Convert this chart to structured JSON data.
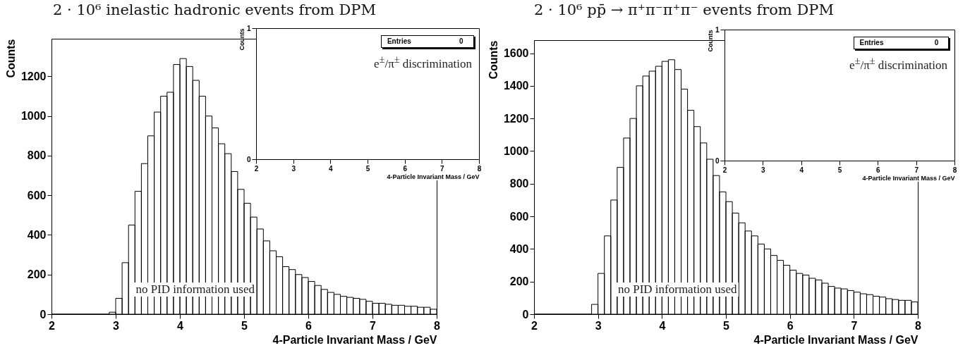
{
  "chart_data": [
    {
      "type": "histogram",
      "title": "2 · 10⁶ inelastic hadronic events from DPM",
      "xlabel": "4-Particle Invariant Mass / GeV",
      "ylabel": "Counts",
      "color": "#000000",
      "bins": [
        2,
        2.1,
        2.2,
        2.3,
        2.4,
        2.5,
        2.6,
        2.7,
        2.8,
        2.9,
        3,
        3.1,
        3.2,
        3.3,
        3.4,
        3.5,
        3.6,
        3.7,
        3.8,
        3.9,
        4,
        4.1,
        4.2,
        4.3,
        4.4,
        4.5,
        4.6,
        4.7,
        4.8,
        4.9,
        5,
        5.1,
        5.2,
        5.3,
        5.4,
        5.5,
        5.6,
        5.7,
        5.8,
        5.9,
        6,
        6.1,
        6.2,
        6.3,
        6.4,
        6.5,
        6.6,
        6.7,
        6.8,
        6.9,
        7,
        7.1,
        7.2,
        7.3,
        7.4,
        7.5,
        7.6,
        7.7,
        7.8,
        7.9,
        8
      ],
      "values": [
        0,
        0,
        0,
        0,
        0,
        0,
        0,
        0,
        0,
        10,
        80,
        260,
        450,
        620,
        760,
        900,
        1020,
        1100,
        1120,
        1260,
        1290,
        1250,
        1180,
        1100,
        1000,
        940,
        860,
        810,
        720,
        630,
        560,
        490,
        430,
        370,
        320,
        290,
        240,
        225,
        200,
        185,
        165,
        145,
        125,
        110,
        100,
        90,
        85,
        80,
        75,
        65,
        55,
        55,
        50,
        45,
        45,
        40,
        40,
        35,
        35,
        25
      ],
      "xlim": [
        2,
        8
      ],
      "xticks": [
        2,
        3,
        4,
        5,
        6,
        7,
        8
      ],
      "ylim": [
        0,
        1390
      ],
      "yticks": [
        0,
        200,
        400,
        600,
        800,
        1000,
        1200
      ],
      "annotations": [
        "no PID information used"
      ]
    },
    {
      "type": "histogram",
      "xlabel": "4-Particle Invariant Mass / GeV",
      "ylabel": "Counts",
      "xlim": [
        2,
        8
      ],
      "xticks": [
        2,
        3,
        4,
        5,
        6,
        7,
        8
      ],
      "ylim": [
        0,
        1
      ],
      "yticks": [
        0,
        1
      ],
      "annotations": [
        "Entries",
        "0",
        "e$^{±}$/π$^{±}$ discrimination"
      ]
    },
    {
      "type": "histogram",
      "title": "2 · 10⁶ pp̄ → π⁺π⁻π⁺π⁻ events from DPM",
      "xlabel": "4-Particle Invariant Mass / GeV",
      "ylabel": "Counts",
      "color": "#000000",
      "bins": [
        2,
        2.1,
        2.2,
        2.3,
        2.4,
        2.5,
        2.6,
        2.7,
        2.8,
        2.9,
        3,
        3.1,
        3.2,
        3.3,
        3.4,
        3.5,
        3.6,
        3.7,
        3.8,
        3.9,
        4,
        4.1,
        4.2,
        4.3,
        4.4,
        4.5,
        4.6,
        4.7,
        4.8,
        4.9,
        5,
        5.1,
        5.2,
        5.3,
        5.4,
        5.5,
        5.6,
        5.7,
        5.8,
        5.9,
        6,
        6.1,
        6.2,
        6.3,
        6.4,
        6.5,
        6.6,
        6.7,
        6.8,
        6.9,
        7,
        7.1,
        7.2,
        7.3,
        7.4,
        7.5,
        7.6,
        7.7,
        7.8,
        7.9,
        8
      ],
      "values": [
        0,
        0,
        0,
        0,
        0,
        0,
        0,
        0,
        0,
        60,
        250,
        480,
        700,
        900,
        1080,
        1200,
        1400,
        1460,
        1490,
        1520,
        1550,
        1560,
        1500,
        1380,
        1250,
        1150,
        1050,
        950,
        850,
        750,
        690,
        620,
        560,
        510,
        480,
        430,
        400,
        360,
        330,
        300,
        270,
        250,
        240,
        220,
        210,
        190,
        170,
        160,
        155,
        145,
        135,
        125,
        120,
        110,
        105,
        95,
        90,
        85,
        85,
        75
      ],
      "xlim": [
        2,
        8
      ],
      "xticks": [
        2,
        3,
        4,
        5,
        6,
        7,
        8
      ],
      "ylim": [
        0,
        1680
      ],
      "yticks": [
        0,
        200,
        400,
        600,
        800,
        1000,
        1200,
        1400,
        1600
      ],
      "annotations": [
        "no PID information used"
      ]
    },
    {
      "type": "histogram",
      "xlabel": "4-Particle Invariant Mass / GeV",
      "ylabel": "Counts",
      "xlim": [
        2,
        8
      ],
      "xticks": [
        2,
        3,
        4,
        5,
        6,
        7,
        8
      ],
      "ylim": [
        0,
        1
      ],
      "yticks": [
        0,
        1
      ],
      "annotations": [
        "Entries",
        "0",
        "e$^{±}$/π$^{±}$ discrimination"
      ]
    }
  ]
}
